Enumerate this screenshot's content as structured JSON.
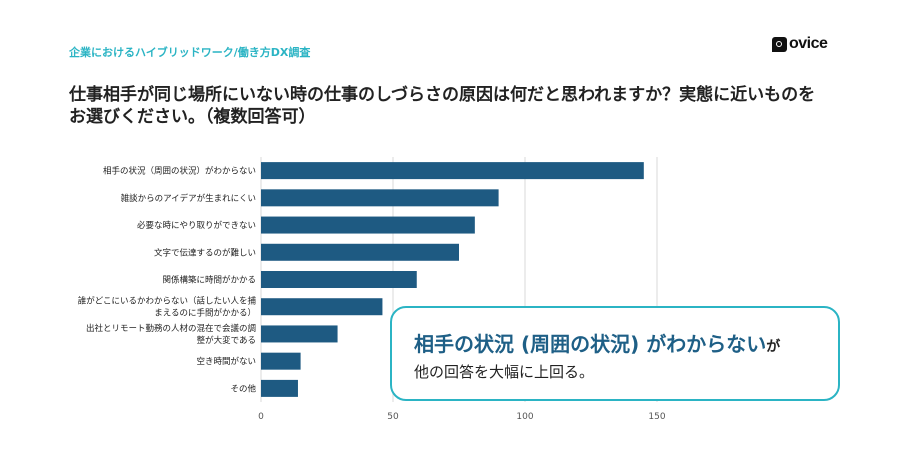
{
  "header": {
    "eyebrow": "企業におけるハイブリッドワーク/働き方DX調査",
    "logo_text": "ovice",
    "logo_icon": "ovice-logo-icon"
  },
  "title": "仕事相手が同じ場所にいない時の仕事のしづらさの原因は何だと思われますか？実態に近いものをお選びください。（複数回答可）",
  "callout": {
    "highlight": "相手の状況 (周囲の状況) がわからない",
    "suffix": "が",
    "line2": "他の回答を大幅に上回る。"
  },
  "colors": {
    "bar": "#1e5a82",
    "accent": "#2bb4c4",
    "grid": "#d9d9d9"
  },
  "chart_data": {
    "type": "bar",
    "orientation": "horizontal",
    "categories": [
      [
        "相手の状況（周囲の状況）がわからない"
      ],
      [
        "雑談からのアイデアが生まれにくい"
      ],
      [
        "必要な時にやり取りができない"
      ],
      [
        "文字で伝達するのが難しい"
      ],
      [
        "関係構築に時間がかかる"
      ],
      [
        "誰がどこにいるかわからない（話したい人を捕",
        "まえるのに手間がかかる）"
      ],
      [
        "出社とリモート勤務の人材の混在で会議の調",
        "整が大変である"
      ],
      [
        "空き時間がない"
      ],
      [
        "その他"
      ]
    ],
    "values": [
      145,
      90,
      81,
      75,
      59,
      46,
      29,
      15,
      14
    ],
    "xlim": [
      0,
      150
    ],
    "xticks": [
      0,
      50,
      100,
      150
    ],
    "grid": true
  }
}
